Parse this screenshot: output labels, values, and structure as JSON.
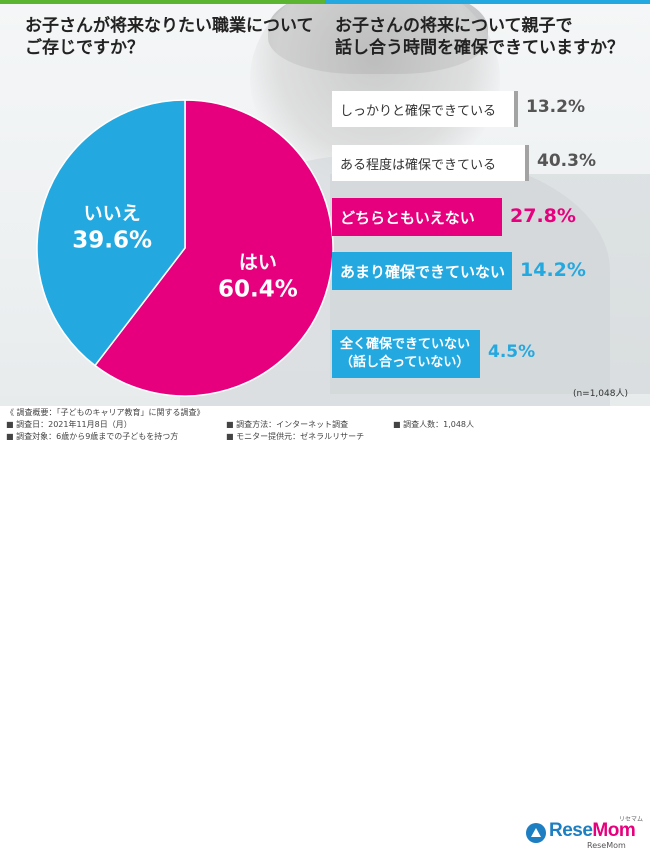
{
  "colors": {
    "green": "#5cb531",
    "blue": "#24a8e0",
    "magenta": "#e6007e",
    "gray": "#a3a3a3"
  },
  "left_question": [
    "お子さんが将来なりたい職業について",
    "ご存じですか？"
  ],
  "right_question": [
    "お子さんの将来について親子で",
    "話し合う時間を確保できていますか？"
  ],
  "chart_data": [
    {
      "type": "pie",
      "title": "お子さんが将来なりたい職業についてご存じですか？",
      "slices": [
        {
          "label": "はい",
          "value": 60.4,
          "display": "60.4%",
          "color": "#e6007e"
        },
        {
          "label": "いいえ",
          "value": 39.6,
          "display": "39.6%",
          "color": "#24a8e0"
        }
      ]
    },
    {
      "type": "bar",
      "orientation": "horizontal",
      "title": "お子さんの将来について親子で話し合う時間を確保できていますか？",
      "categories": [
        "しっかりと確保できている",
        "ある程度は確保できている",
        "どちらともいえない",
        "あまり確保できていない",
        "全く確保できていない（話し合っていない）"
      ],
      "category_lines": [
        [
          "しっかりと確保できている"
        ],
        [
          "ある程度は確保できている"
        ],
        [
          "どちらともいえない"
        ],
        [
          "あまり確保できていない"
        ],
        [
          "全く確保できていない",
          "（話し合っていない）"
        ]
      ],
      "values": [
        13.2,
        40.3,
        27.8,
        14.2,
        4.5
      ],
      "display": [
        "13.2%",
        "40.3%",
        "27.8%",
        "14.2%",
        "4.5%"
      ],
      "colors": [
        "#a3a3a3",
        "#a3a3a3",
        "#e6007e",
        "#24a8e0",
        "#24a8e0"
      ],
      "note": "(n=1,048人)"
    }
  ],
  "footer": {
    "overview": "《 調査概要：「子どものキャリア教育」に関する調査》",
    "date": "■ 調査日：2021年11月8日（月）",
    "method": "■ 調査方法：インターネット調査",
    "count": "■ 調査人数：1,048人",
    "target": "■ 調査対象：6歳から9歳までの子どもを持つ方",
    "provider": "■ モニター提供元：ゼネラルリサーチ"
  },
  "logo": {
    "part1": "Rese",
    "part2": "Mom",
    "ruby": "リセマム",
    "sub": "ReseMom"
  }
}
